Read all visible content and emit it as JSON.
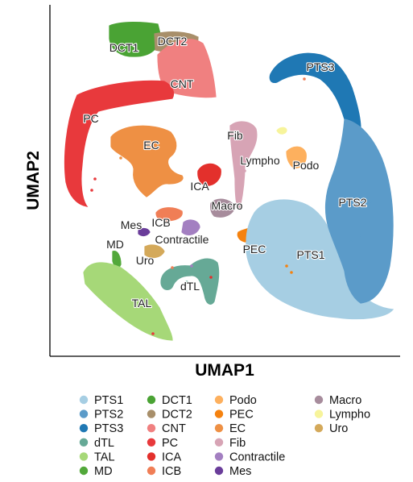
{
  "chart_data": {
    "type": "scatter",
    "title": "",
    "xlabel": "UMAP1",
    "ylabel": "UMAP2",
    "grid": false,
    "axis_ticks": false,
    "legend": {
      "placement": "bottom",
      "columns": [
        [
          "PTS1",
          "PTS2",
          "PTS3",
          "dTL",
          "TAL",
          "MD"
        ],
        [
          "DCT1",
          "DCT2",
          "CNT",
          "PC",
          "ICA",
          "ICB"
        ],
        [
          "Podo",
          "PEC",
          "EC",
          "Fib",
          "Contractile",
          "Mes"
        ],
        [
          "Macro",
          "Lympho",
          "Uro"
        ]
      ]
    },
    "series": [
      {
        "name": "PTS1",
        "color": "#a6cee3"
      },
      {
        "name": "PTS2",
        "color": "#5b9bc9"
      },
      {
        "name": "PTS3",
        "color": "#1f78b4"
      },
      {
        "name": "dTL",
        "color": "#66a996"
      },
      {
        "name": "TAL",
        "color": "#a6d878"
      },
      {
        "name": "MD",
        "color": "#52a83a"
      },
      {
        "name": "DCT1",
        "color": "#4aa334"
      },
      {
        "name": "DCT2",
        "color": "#a88f6a"
      },
      {
        "name": "CNT",
        "color": "#f08080"
      },
      {
        "name": "PC",
        "color": "#e8393c"
      },
      {
        "name": "ICA",
        "color": "#e3302c"
      },
      {
        "name": "ICB",
        "color": "#f07e56"
      },
      {
        "name": "Podo",
        "color": "#fdb05e"
      },
      {
        "name": "PEC",
        "color": "#f5820f"
      },
      {
        "name": "EC",
        "color": "#ee9044"
      },
      {
        "name": "Fib",
        "color": "#d7a4b5"
      },
      {
        "name": "Contractile",
        "color": "#a37fc1"
      },
      {
        "name": "Mes",
        "color": "#6a3d9a"
      },
      {
        "name": "Macro",
        "color": "#a78c9c"
      },
      {
        "name": "Lympho",
        "color": "#f7f49b"
      },
      {
        "name": "Uro",
        "color": "#d4a95a"
      }
    ],
    "cluster_labels": [
      "DCT1",
      "DCT2",
      "CNT",
      "PC",
      "EC",
      "Fib",
      "Lympho",
      "Podo",
      "ICA",
      "Macro",
      "Mes",
      "ICB",
      "Contractile",
      "MD",
      "Uro",
      "PEC",
      "PTS1",
      "dTL",
      "TAL",
      "PTS3",
      "PTS2"
    ]
  }
}
